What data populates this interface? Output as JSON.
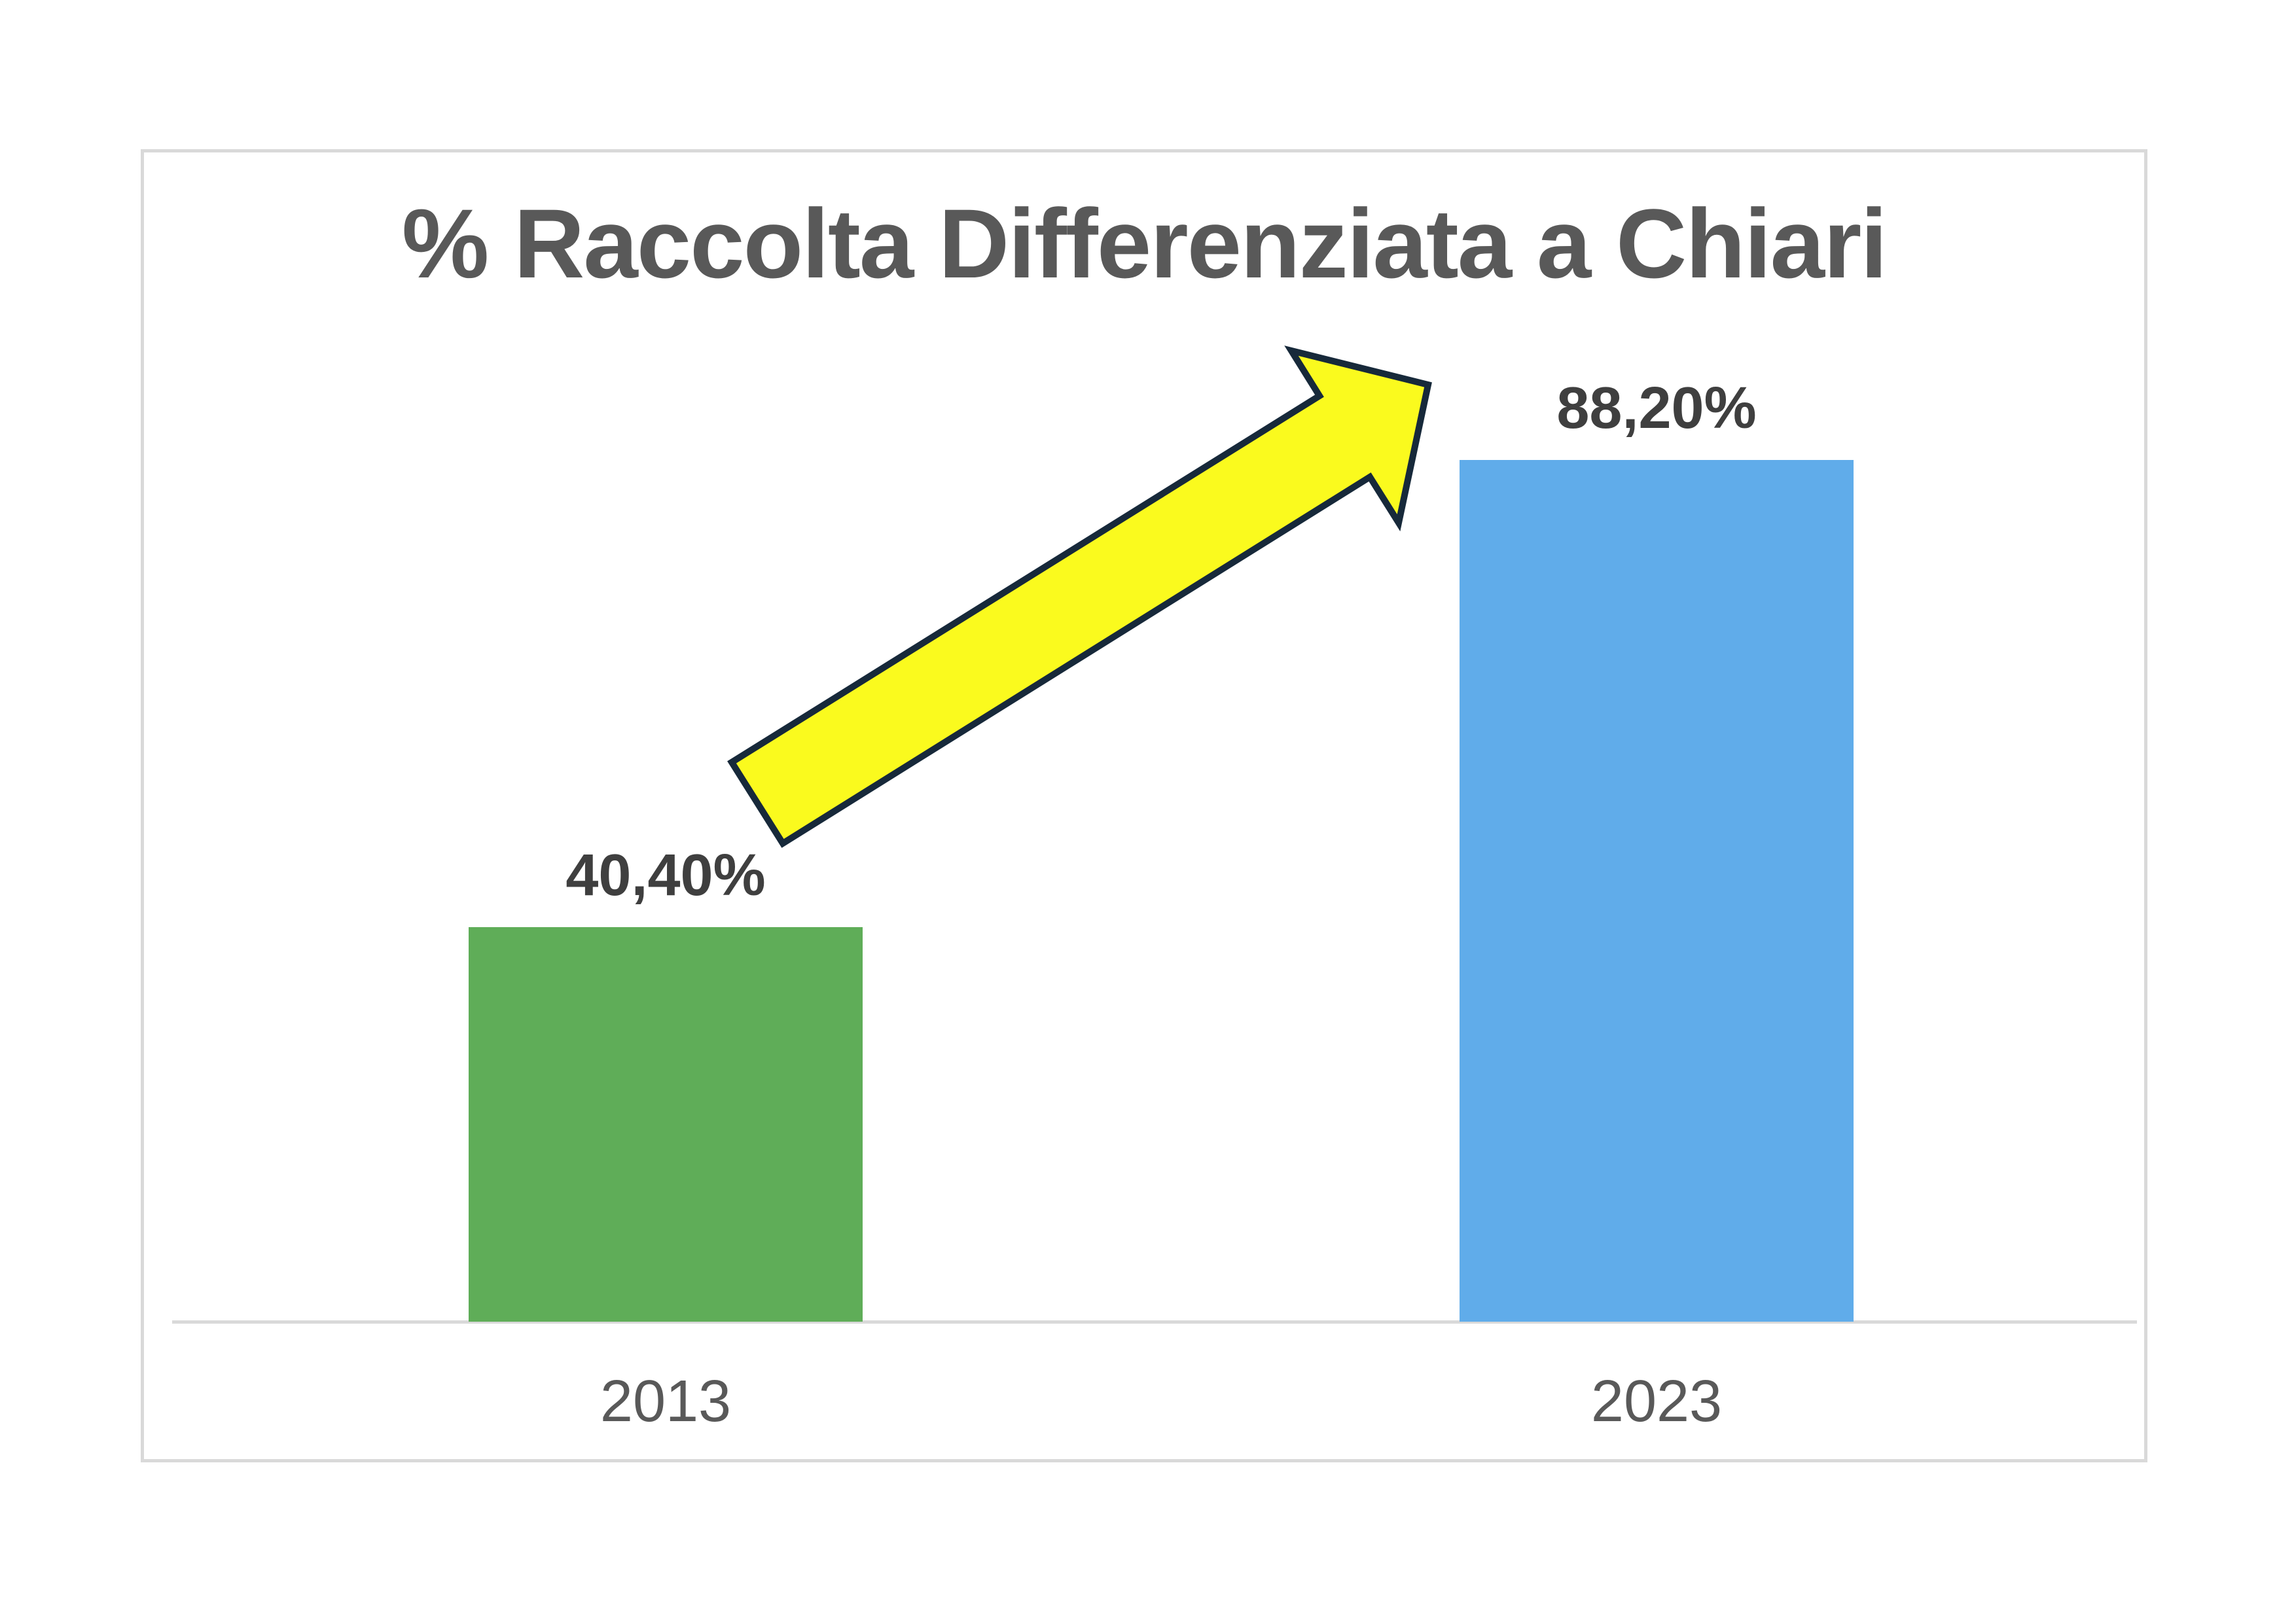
{
  "chart_data": {
    "type": "bar",
    "title": "% Raccolta Differenziata a Chiari",
    "categories": [
      "2013",
      "2023"
    ],
    "values": [
      40.4,
      88.2
    ],
    "value_labels": [
      "40,40%",
      "88,20%"
    ],
    "series": [
      {
        "name": "Raccolta Differenziata",
        "values": [
          40.4,
          88.2
        ]
      }
    ],
    "bar_colors": [
      "#5FAD58",
      "#60ACEA"
    ],
    "xlabel": "",
    "ylabel": "",
    "ylim": [
      0,
      100
    ],
    "grid": false,
    "legend": false,
    "annotations": [
      {
        "type": "block-arrow-up-right",
        "meaning": "strong increase from 2013 to 2023",
        "fill_color": "#FAFA1E",
        "outline_color": "#17293A"
      }
    ]
  },
  "frame": {
    "border_color": "#D9D9D9",
    "axis_line_color": "#D9D9D9",
    "background": "#ffffff"
  },
  "text_colors": {
    "title": "#595959",
    "value_labels": "#3F3F3F",
    "category_labels": "#595959"
  }
}
